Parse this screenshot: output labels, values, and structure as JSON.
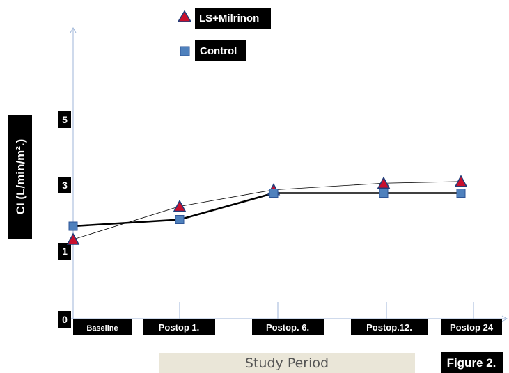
{
  "chart_data": {
    "type": "line",
    "categories": [
      "Baseline",
      "Postop 1.",
      "Postop. 6.",
      "Postop.12.",
      "Postop 24"
    ],
    "series": [
      {
        "name": "LS+Milrinon",
        "marker": "triangle",
        "color": "#c8102e",
        "values": [
          2.4,
          3.4,
          3.9,
          4.1,
          4.15
        ]
      },
      {
        "name": "Control",
        "marker": "square",
        "color": "#4f81bd",
        "values": [
          2.8,
          3.0,
          3.8,
          3.8,
          3.8
        ]
      }
    ],
    "y_tick_labels": [
      "0",
      "1",
      "3",
      "5"
    ],
    "ylabel": "CI (L/min/m².)",
    "xlabel": "Study Period",
    "caption": "Figure 2.",
    "legend_position": "top-center",
    "grid": false
  }
}
